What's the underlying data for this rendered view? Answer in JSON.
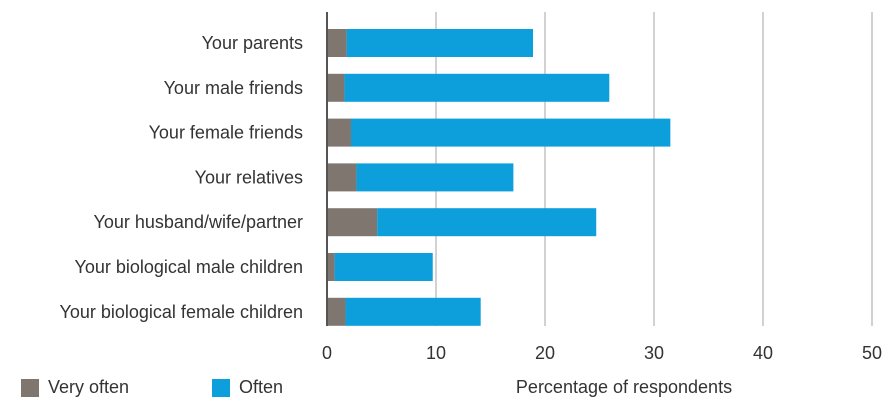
{
  "colors": {
    "very_often": "#7f7670",
    "often": "#0d9fdb",
    "grid": "#a6a6a6",
    "axis": "#555555",
    "text": "#333333"
  },
  "chart_data": {
    "type": "bar",
    "orientation": "horizontal",
    "stacked": true,
    "categories": [
      "Your parents",
      "Your male friends",
      "Your female friends",
      "Your relatives",
      "Your husband/wife/partner",
      "Your biological male children",
      "Your biological female children"
    ],
    "series": [
      {
        "name": "Very often",
        "values": [
          1.8,
          1.6,
          2.2,
          2.7,
          4.6,
          0.7,
          1.7
        ]
      },
      {
        "name": "Often",
        "values": [
          17.1,
          24.3,
          29.3,
          14.4,
          20.1,
          9.0,
          12.4
        ]
      }
    ],
    "xlim": [
      0,
      50
    ],
    "xticks": [
      "0",
      "10",
      "20",
      "30",
      "40",
      "50"
    ],
    "xlabel": "Percentage of respondents",
    "grid": true,
    "legend_position": "bottom-left"
  }
}
